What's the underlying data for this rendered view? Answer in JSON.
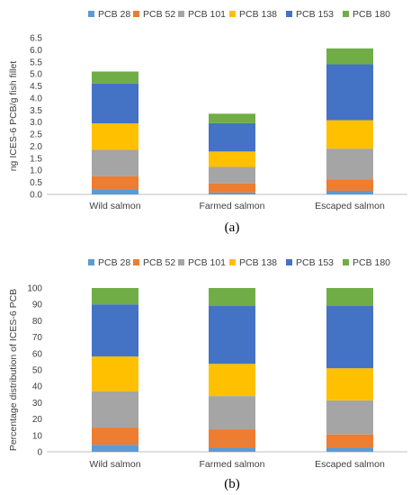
{
  "chart_data": [
    {
      "type": "bar",
      "stacked": true,
      "panel_label": "(a)",
      "title": "",
      "xlabel": "",
      "ylabel": "ng ICES-6 PCB/g fish fillet",
      "ylim": [
        0,
        6.5
      ],
      "ytick_step": 0.5,
      "ytick_labels": [
        "0.0",
        "0.5",
        "1.0",
        "1.5",
        "2.0",
        "2.5",
        "3.0",
        "3.5",
        "4.0",
        "4.5",
        "5.0",
        "5.5",
        "6.0",
        "6.5"
      ],
      "legend_position": "top",
      "grid": false,
      "categories": [
        "Wild salmon",
        "Farmed salmon",
        "Escaped salmon"
      ],
      "series": [
        {
          "name": "PCB 28",
          "color": "#5B9BD5",
          "values": [
            0.22,
            0.08,
            0.15
          ]
        },
        {
          "name": "PCB 52",
          "color": "#ED7D31",
          "values": [
            0.53,
            0.38,
            0.48
          ]
        },
        {
          "name": "PCB 101",
          "color": "#A5A5A5",
          "values": [
            1.1,
            0.68,
            1.27
          ]
        },
        {
          "name": "PCB 138",
          "color": "#FFC000",
          "values": [
            1.1,
            0.64,
            1.18
          ]
        },
        {
          "name": "PCB 153",
          "color": "#4472C4",
          "values": [
            1.65,
            1.18,
            2.32
          ]
        },
        {
          "name": "PCB 180",
          "color": "#70AD47",
          "values": [
            0.5,
            0.39,
            0.66
          ]
        }
      ]
    },
    {
      "type": "bar",
      "stacked": true,
      "panel_label": "(b)",
      "title": "",
      "xlabel": "",
      "ylabel": "Percentage distribution of ICES-6 PCB",
      "ylim": [
        0,
        100
      ],
      "ytick_step": 10,
      "ytick_labels": [
        "0",
        "10",
        "20",
        "30",
        "40",
        "50",
        "60",
        "70",
        "80",
        "90",
        "100"
      ],
      "legend_position": "top",
      "grid": false,
      "categories": [
        "Wild salmon",
        "Farmed salmon",
        "Escaped salmon"
      ],
      "series": [
        {
          "name": "PCB 28",
          "color": "#5B9BD5",
          "values": [
            4.3,
            2.5,
            2.5
          ]
        },
        {
          "name": "PCB 52",
          "color": "#ED7D31",
          "values": [
            10.5,
            11.2,
            8.1
          ]
        },
        {
          "name": "PCB 101",
          "color": "#A5A5A5",
          "values": [
            22.2,
            20.3,
            20.8
          ]
        },
        {
          "name": "PCB 138",
          "color": "#FFC000",
          "values": [
            21.2,
            19.7,
            19.6
          ]
        },
        {
          "name": "PCB 153",
          "color": "#4472C4",
          "values": [
            31.8,
            35.3,
            38.0
          ]
        },
        {
          "name": "PCB 180",
          "color": "#70AD47",
          "values": [
            10.0,
            11.0,
            11.0
          ]
        }
      ]
    }
  ]
}
